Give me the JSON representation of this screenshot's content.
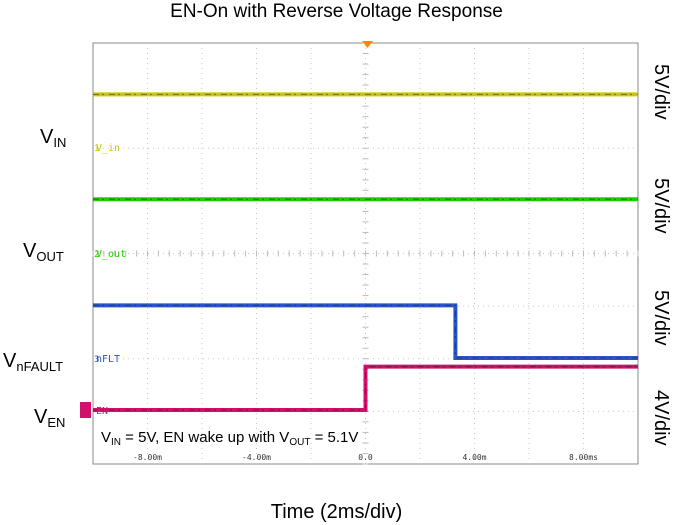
{
  "chart_data": {
    "type": "line",
    "title": "EN-On with Reverse Voltage Response",
    "xlabel": "Time (2ms/div)",
    "xlim": [
      -10,
      10
    ],
    "x_unit": "ms",
    "x_tick_labels": [
      "-8.00m",
      "-4.00m",
      "0.0",
      "4.00m",
      "8.00ms"
    ],
    "x_tick_values": [
      -8,
      -4,
      0,
      4,
      8
    ],
    "divisions": {
      "horizontal": 10,
      "vertical": 8
    },
    "series": [
      {
        "name": "V_in",
        "color": "#c8c800",
        "scale": "5V/div",
        "label_main": "V",
        "label_sub": "IN",
        "x": [
          -10,
          10
        ],
        "y": [
          5,
          5
        ]
      },
      {
        "name": "V_out",
        "color": "#22cc00",
        "scale": "5V/div",
        "label_main": "V",
        "label_sub": "OUT",
        "x": [
          -10,
          10
        ],
        "y": [
          5.1,
          5.1
        ]
      },
      {
        "name": "nFLT",
        "color": "#2a55c8",
        "scale": "5V/div",
        "label_main": "V",
        "label_sub": "nFAULT",
        "x": [
          -10,
          3.3,
          3.3,
          10
        ],
        "y": [
          5,
          5,
          0,
          0
        ]
      },
      {
        "name": "EN",
        "color": "#d0106a",
        "scale": "4V/div",
        "label_main": "V",
        "label_sub": "EN",
        "x": [
          -10,
          0,
          0,
          10
        ],
        "y": [
          0,
          0,
          3.3,
          3.3
        ]
      }
    ],
    "annotation": {
      "p1": "V",
      "s1": "IN",
      "p2": " = 5V, EN wake up with V",
      "s2": "OUT",
      "p3": " = 5.1V"
    },
    "grid": true
  }
}
